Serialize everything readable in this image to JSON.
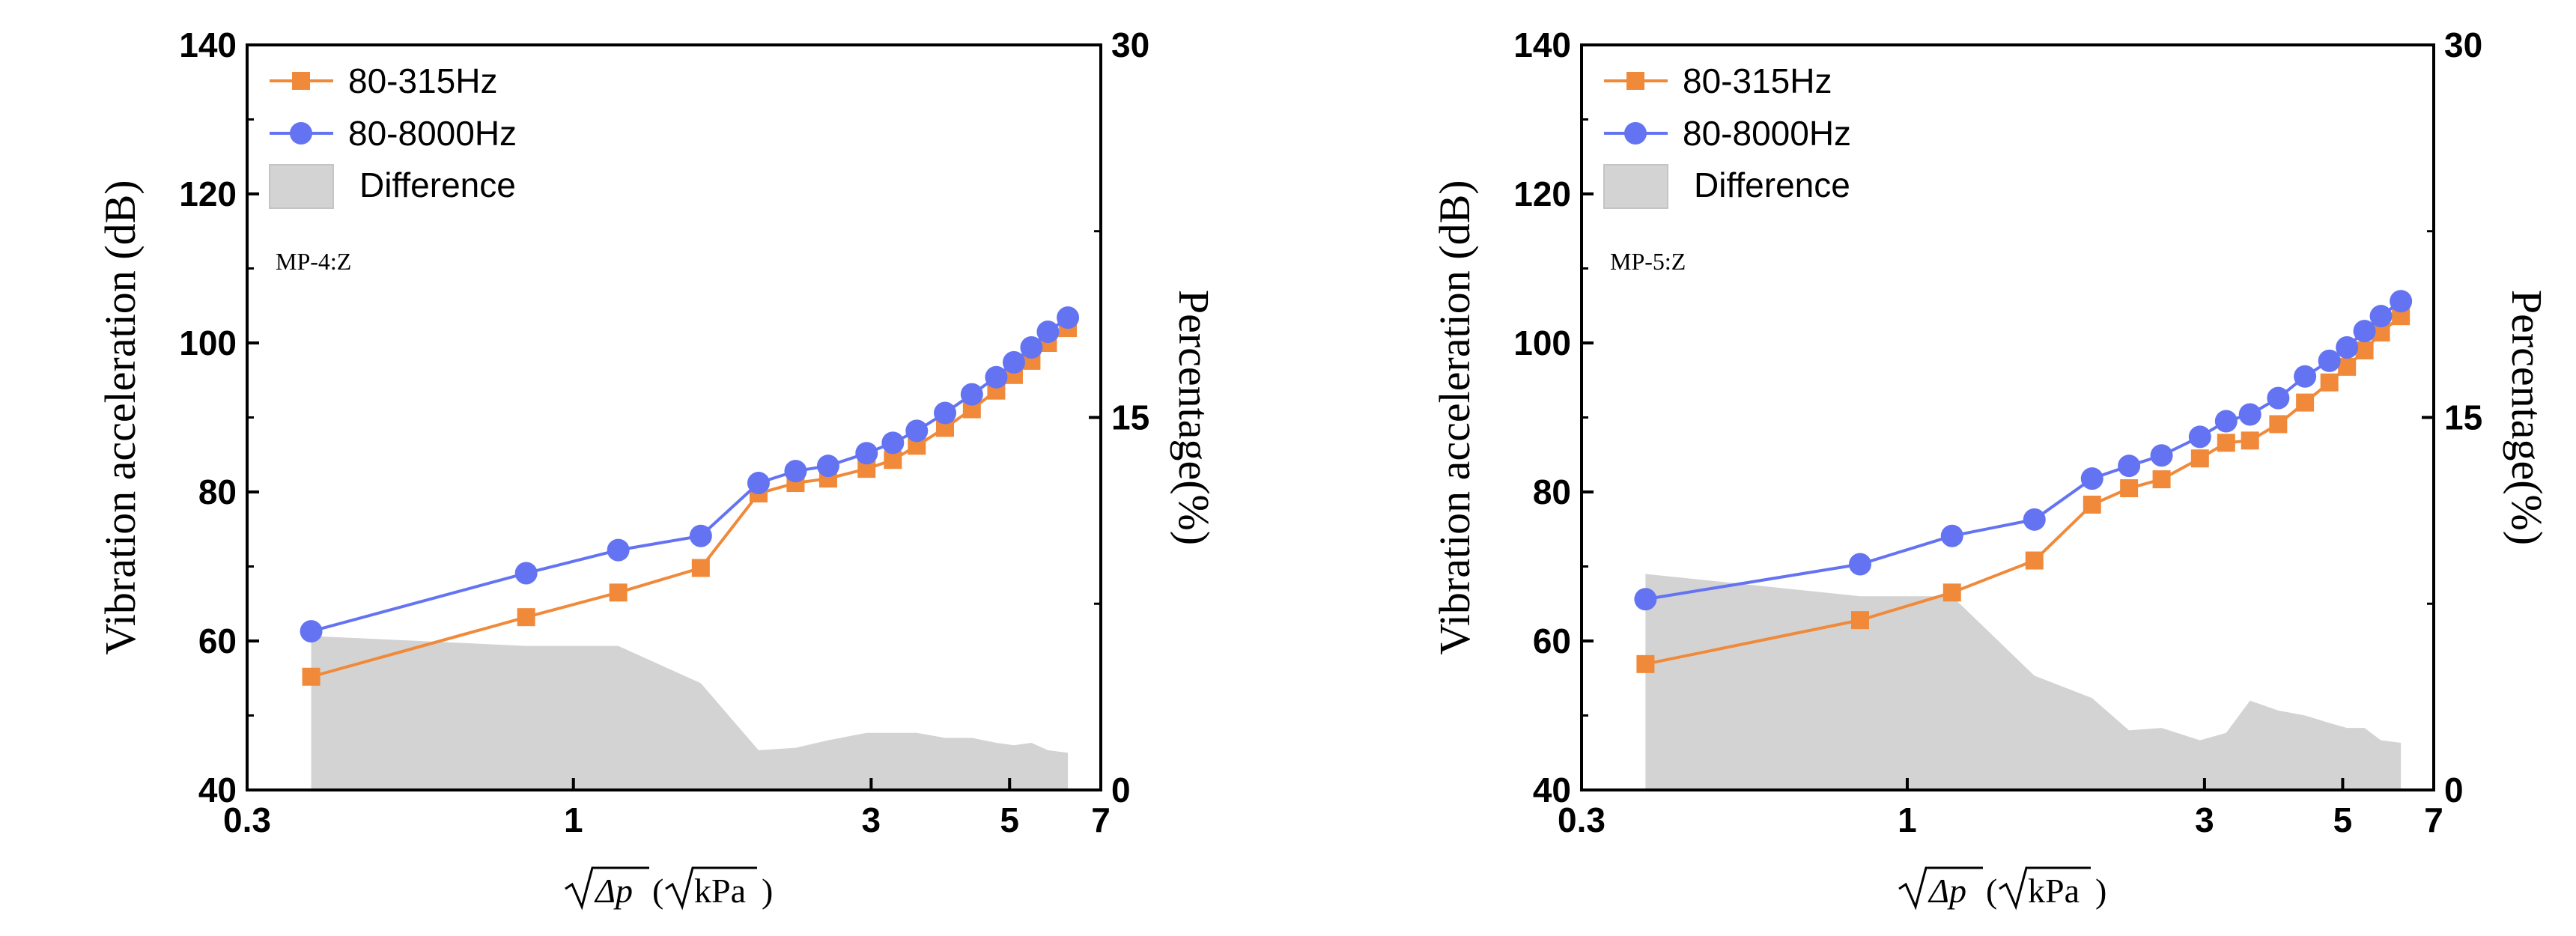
{
  "chart_data": [
    {
      "type": "line",
      "annotation": "MP-4:Z",
      "xlabel_parts": {
        "radical": "Δp",
        "open": "(",
        "unit_radical": "kPa",
        "close": ")"
      },
      "ylabel": "Vibration acceleration (dB)",
      "y2label": "Percentage(%)",
      "x_scale": "log",
      "xlim": [
        0.3,
        7
      ],
      "ylim": [
        40,
        140
      ],
      "y2lim": [
        0,
        30
      ],
      "xticks": [
        0.3,
        1,
        3,
        5,
        7
      ],
      "xtick_labels": [
        "0.3",
        "1",
        "3",
        "5",
        "7"
      ],
      "yticks": [
        40,
        60,
        80,
        100,
        120,
        140
      ],
      "y2ticks": [
        0,
        15,
        30
      ],
      "grid": false,
      "legend_position": "top-left",
      "x": [
        0.38,
        0.84,
        1.18,
        1.6,
        1.98,
        2.27,
        2.56,
        2.95,
        3.25,
        3.55,
        3.94,
        4.35,
        4.76,
        5.08,
        5.42,
        5.76,
        6.2
      ],
      "series": [
        {
          "name": "80-315Hz",
          "marker": "square",
          "color": "#f08a3a",
          "values": [
            55.2,
            63.2,
            66.5,
            69.8,
            79.8,
            81.2,
            81.8,
            83.1,
            84.3,
            86.2,
            88.6,
            91.1,
            93.6,
            95.7,
            97.6,
            100.0,
            102.0
          ]
        },
        {
          "name": "80-8000Hz",
          "marker": "circle",
          "color": "#6473f2",
          "values": [
            61.3,
            69.1,
            72.2,
            74.1,
            81.2,
            82.8,
            83.5,
            85.2,
            86.6,
            88.2,
            90.6,
            93.1,
            95.4,
            97.4,
            99.4,
            101.5,
            103.4
          ]
        },
        {
          "name": "Difference",
          "type": "area",
          "axis": "y2",
          "color": "#d3d3d3",
          "x": [
            0.38,
            0.84,
            1.18,
            1.6,
            1.98,
            2.27,
            2.56,
            2.95,
            3.25,
            3.55,
            3.94,
            4.35,
            4.76,
            5.08,
            5.42,
            5.76,
            6.2
          ],
          "values": [
            6.2,
            5.8,
            5.8,
            4.3,
            1.6,
            1.7,
            2.0,
            2.3,
            2.3,
            2.3,
            2.1,
            2.1,
            1.9,
            1.8,
            1.9,
            1.6,
            1.5
          ]
        }
      ]
    },
    {
      "type": "line",
      "annotation": "MP-5:Z",
      "xlabel_parts": {
        "radical": "Δp",
        "open": "(",
        "unit_radical": "kPa",
        "close": ")"
      },
      "ylabel": "Vibration acceleration (dB)",
      "y2label": "Percentage(%)",
      "x_scale": "log",
      "xlim": [
        0.3,
        7
      ],
      "ylim": [
        40,
        140
      ],
      "y2lim": [
        0,
        30
      ],
      "xticks": [
        0.3,
        1,
        3,
        5,
        7
      ],
      "xtick_labels": [
        "0.3",
        "1",
        "3",
        "5",
        "7"
      ],
      "yticks": [
        40,
        60,
        80,
        100,
        120,
        140
      ],
      "y2ticks": [
        0,
        15,
        30
      ],
      "grid": false,
      "legend_position": "top-left",
      "x": [
        0.38,
        0.84,
        1.18,
        1.6,
        1.98,
        2.27,
        2.56,
        2.95,
        3.25,
        3.55,
        3.94,
        4.35,
        4.76,
        5.08,
        5.42,
        5.76,
        6.2
      ],
      "series": [
        {
          "name": "80-315Hz",
          "marker": "square",
          "color": "#f08a3a",
          "values": [
            56.9,
            62.8,
            66.5,
            70.8,
            78.3,
            80.5,
            81.7,
            84.5,
            86.6,
            86.9,
            89.1,
            92.0,
            94.7,
            96.8,
            99.0,
            101.4,
            103.6
          ]
        },
        {
          "name": "80-8000Hz",
          "marker": "circle",
          "color": "#6473f2",
          "values": [
            65.6,
            70.3,
            74.1,
            76.3,
            81.8,
            83.5,
            84.9,
            87.4,
            89.5,
            90.4,
            92.6,
            95.5,
            97.6,
            99.4,
            101.6,
            103.6,
            105.6
          ]
        },
        {
          "name": "Difference",
          "type": "area",
          "axis": "y2",
          "color": "#d3d3d3",
          "x": [
            0.38,
            0.84,
            1.18,
            1.6,
            1.98,
            2.27,
            2.56,
            2.95,
            3.25,
            3.55,
            3.94,
            4.35,
            4.76,
            5.08,
            5.42,
            5.76,
            6.2
          ],
          "values": [
            8.7,
            7.8,
            7.8,
            4.6,
            3.7,
            2.4,
            2.5,
            2.0,
            2.3,
            3.6,
            3.2,
            3.0,
            2.7,
            2.5,
            2.5,
            2.0,
            1.9
          ]
        }
      ]
    }
  ]
}
